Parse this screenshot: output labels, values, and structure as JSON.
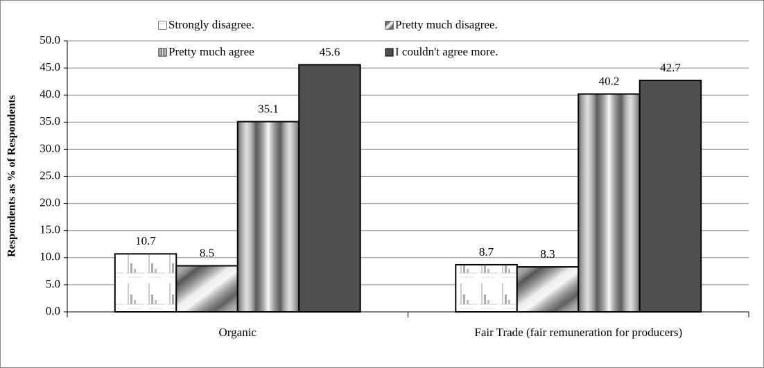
{
  "chart_data": {
    "type": "bar",
    "y_label": "Respondents as % of Respondents",
    "categories": [
      "Organic",
      "Fair Trade (fair remuneration for producers)"
    ],
    "series": [
      {
        "name": "Strongly disagree.",
        "color": "#ffffff",
        "values": [
          10.7,
          8.7
        ]
      },
      {
        "name": "Pretty much disagree.",
        "color": "#a6a6a6",
        "values": [
          8.5,
          8.3
        ]
      },
      {
        "name": "Pretty much agree",
        "color": "#cfcfcf",
        "values": [
          35.1,
          40.2
        ]
      },
      {
        "name": "I couldn't agree more.",
        "color": "#595959",
        "values": [
          45.6,
          42.7
        ]
      }
    ],
    "ylim": [
      0,
      50
    ],
    "yticks": [
      {
        "value": 0,
        "label": "0.0"
      },
      {
        "value": 5,
        "label": "5.0"
      },
      {
        "value": 10,
        "label": "10.0"
      },
      {
        "value": 15,
        "label": "15.0"
      },
      {
        "value": 20,
        "label": "20.0"
      },
      {
        "value": 25,
        "label": "25.0"
      },
      {
        "value": 30,
        "label": "30.0"
      },
      {
        "value": 35,
        "label": "35.0"
      },
      {
        "value": 40,
        "label": "40.0"
      },
      {
        "value": 45,
        "label": "45.0"
      },
      {
        "value": 50,
        "label": "50.0"
      }
    ],
    "grid": true
  }
}
